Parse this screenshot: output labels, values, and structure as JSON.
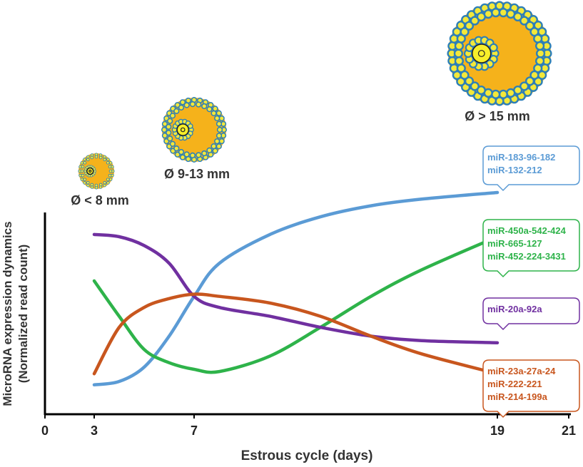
{
  "chart_data": {
    "type": "line",
    "xlabel": "Estrous cycle (days)",
    "ylabel": [
      "MicroRNA expression dynamics",
      "(Normalized read count)"
    ],
    "xlim": [
      0,
      21
    ],
    "xticks": [
      0,
      3,
      7,
      19,
      21
    ],
    "ylim": [
      0,
      100
    ],
    "follicles": [
      "Ø < 8 mm",
      "Ø 9-13 mm",
      "Ø > 15 mm"
    ],
    "x": [
      3,
      4,
      5,
      6,
      7,
      8,
      10,
      12,
      14,
      16,
      19
    ],
    "series": [
      {
        "name": [
          "miR-183-96-182",
          "miR-132-212"
        ],
        "color": "#5b9bd5",
        "values": [
          13,
          14.5,
          21,
          35,
          53,
          68,
          81,
          89,
          94,
          97,
          100
        ]
      },
      {
        "name": [
          "miR-450a-542-424",
          "miR-665-127",
          "miR-452-224-3431"
        ],
        "color": "#2eb34a",
        "values": [
          60,
          44,
          29,
          23,
          20,
          19,
          26,
          39,
          53,
          65,
          80
        ]
      },
      {
        "name": [
          "miR-20a-92a"
        ],
        "color": "#7030a0",
        "values": [
          81,
          80,
          76,
          68,
          53,
          48,
          44,
          39,
          35,
          33,
          32
        ]
      },
      {
        "name": [
          "miR-23a-27a-24",
          "miR-222-221",
          "miR-214-199a"
        ],
        "color": "#c8561e",
        "values": [
          18,
          39,
          48,
          52,
          54,
          53,
          50,
          44,
          35,
          27,
          18
        ]
      }
    ]
  }
}
